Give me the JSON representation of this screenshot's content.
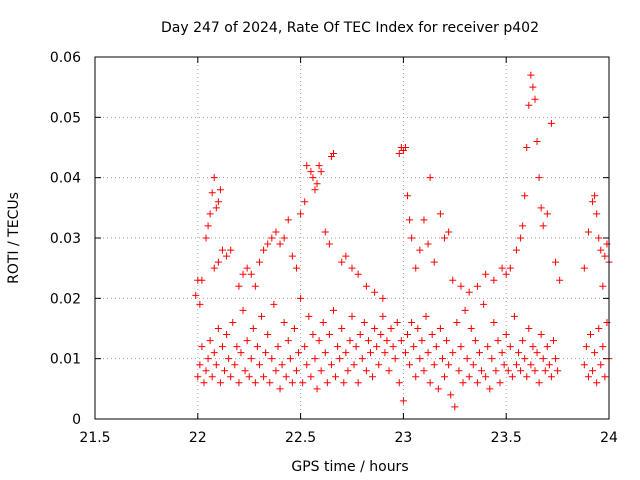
{
  "chart_data": {
    "type": "scatter",
    "title": "Day 247 of 2024, Rate Of TEC Index for receiver p402",
    "xlabel": "GPS time / hours",
    "ylabel": "ROTI / TECUs",
    "xlim": [
      21.5,
      24
    ],
    "ylim": [
      0,
      0.06
    ],
    "x_ticks": [
      21.5,
      22,
      22.5,
      23,
      23.5,
      24
    ],
    "x_tick_labels": [
      "21.5",
      "22",
      "22.5",
      "23",
      "23.5",
      "24"
    ],
    "y_ticks": [
      0,
      0.01,
      0.02,
      0.03,
      0.04,
      0.05,
      0.06
    ],
    "y_tick_labels": [
      "0",
      "0.01",
      "0.02",
      "0.03",
      "0.04",
      "0.05",
      "0.06"
    ],
    "grid": true,
    "marker": "plus",
    "series_color": "#ff0000",
    "series": [
      {
        "name": "ROTI",
        "points": [
          [
            21.99,
            0.0205
          ],
          [
            22.0,
            0.023
          ],
          [
            22.01,
            0.019
          ],
          [
            22.02,
            0.023
          ],
          [
            22.04,
            0.03
          ],
          [
            22.05,
            0.032
          ],
          [
            22.06,
            0.034
          ],
          [
            22.07,
            0.0375
          ],
          [
            22.08,
            0.04
          ],
          [
            22.09,
            0.035
          ],
          [
            22.1,
            0.036
          ],
          [
            22.11,
            0.038
          ],
          [
            22.08,
            0.025
          ],
          [
            22.1,
            0.026
          ],
          [
            22.12,
            0.028
          ],
          [
            22.14,
            0.027
          ],
          [
            22.16,
            0.028
          ],
          [
            22.2,
            0.022
          ],
          [
            22.22,
            0.024
          ],
          [
            22.24,
            0.025
          ],
          [
            22.26,
            0.024
          ],
          [
            22.28,
            0.022
          ],
          [
            22.3,
            0.026
          ],
          [
            22.32,
            0.028
          ],
          [
            22.34,
            0.029
          ],
          [
            22.36,
            0.03
          ],
          [
            22.38,
            0.031
          ],
          [
            22.4,
            0.029
          ],
          [
            22.42,
            0.03
          ],
          [
            22.44,
            0.033
          ],
          [
            22.46,
            0.027
          ],
          [
            22.48,
            0.025
          ],
          [
            22.5,
            0.034
          ],
          [
            22.52,
            0.036
          ],
          [
            22.53,
            0.042
          ],
          [
            22.55,
            0.041
          ],
          [
            22.56,
            0.04
          ],
          [
            22.57,
            0.038
          ],
          [
            22.58,
            0.039
          ],
          [
            22.59,
            0.042
          ],
          [
            22.6,
            0.041
          ],
          [
            22.62,
            0.031
          ],
          [
            22.64,
            0.029
          ],
          [
            22.65,
            0.0435
          ],
          [
            22.66,
            0.044
          ],
          [
            22.7,
            0.026
          ],
          [
            22.72,
            0.027
          ],
          [
            22.75,
            0.025
          ],
          [
            22.78,
            0.024
          ],
          [
            22.82,
            0.022
          ],
          [
            22.86,
            0.021
          ],
          [
            22.9,
            0.02
          ],
          [
            22.98,
            0.044
          ],
          [
            22.99,
            0.045
          ],
          [
            23.0,
            0.0445
          ],
          [
            23.01,
            0.045
          ],
          [
            23.02,
            0.037
          ],
          [
            23.03,
            0.033
          ],
          [
            23.04,
            0.03
          ],
          [
            23.06,
            0.025
          ],
          [
            23.08,
            0.028
          ],
          [
            23.1,
            0.033
          ],
          [
            23.12,
            0.029
          ],
          [
            23.13,
            0.04
          ],
          [
            23.15,
            0.026
          ],
          [
            23.18,
            0.034
          ],
          [
            23.2,
            0.03
          ],
          [
            23.22,
            0.031
          ],
          [
            23.24,
            0.023
          ],
          [
            23.28,
            0.022
          ],
          [
            23.32,
            0.021
          ],
          [
            23.36,
            0.022
          ],
          [
            23.4,
            0.024
          ],
          [
            23.44,
            0.023
          ],
          [
            23.48,
            0.025
          ],
          [
            23.5,
            0.024
          ],
          [
            23.52,
            0.025
          ],
          [
            23.55,
            0.028
          ],
          [
            23.57,
            0.03
          ],
          [
            23.58,
            0.032
          ],
          [
            23.59,
            0.037
          ],
          [
            23.6,
            0.045
          ],
          [
            23.61,
            0.052
          ],
          [
            23.62,
            0.057
          ],
          [
            23.63,
            0.055
          ],
          [
            23.64,
            0.053
          ],
          [
            23.65,
            0.046
          ],
          [
            23.66,
            0.04
          ],
          [
            23.67,
            0.035
          ],
          [
            23.68,
            0.032
          ],
          [
            23.7,
            0.034
          ],
          [
            23.72,
            0.049
          ],
          [
            23.74,
            0.026
          ],
          [
            23.76,
            0.023
          ],
          [
            23.88,
            0.025
          ],
          [
            23.9,
            0.031
          ],
          [
            23.92,
            0.036
          ],
          [
            23.93,
            0.037
          ],
          [
            23.94,
            0.034
          ],
          [
            23.95,
            0.03
          ],
          [
            23.96,
            0.028
          ],
          [
            23.97,
            0.022
          ],
          [
            23.98,
            0.027
          ],
          [
            23.99,
            0.029
          ],
          [
            24.0,
            0.026
          ],
          [
            22.0,
            0.007
          ],
          [
            22.01,
            0.009
          ],
          [
            22.02,
            0.012
          ],
          [
            22.03,
            0.006
          ],
          [
            22.04,
            0.008
          ],
          [
            22.05,
            0.01
          ],
          [
            22.06,
            0.013
          ],
          [
            22.07,
            0.007
          ],
          [
            22.08,
            0.011
          ],
          [
            22.09,
            0.009
          ],
          [
            22.1,
            0.015
          ],
          [
            22.11,
            0.006
          ],
          [
            22.12,
            0.012
          ],
          [
            22.13,
            0.008
          ],
          [
            22.14,
            0.014
          ],
          [
            22.15,
            0.01
          ],
          [
            22.16,
            0.007
          ],
          [
            22.17,
            0.016
          ],
          [
            22.18,
            0.009
          ],
          [
            22.19,
            0.012
          ],
          [
            22.2,
            0.006
          ],
          [
            22.21,
            0.011
          ],
          [
            22.22,
            0.018
          ],
          [
            22.23,
            0.008
          ],
          [
            22.24,
            0.013
          ],
          [
            22.25,
            0.007
          ],
          [
            22.26,
            0.01
          ],
          [
            22.27,
            0.015
          ],
          [
            22.28,
            0.006
          ],
          [
            22.29,
            0.012
          ],
          [
            22.3,
            0.009
          ],
          [
            22.31,
            0.017
          ],
          [
            22.32,
            0.007
          ],
          [
            22.33,
            0.011
          ],
          [
            22.34,
            0.014
          ],
          [
            22.35,
            0.006
          ],
          [
            22.36,
            0.01
          ],
          [
            22.37,
            0.019
          ],
          [
            22.38,
            0.008
          ],
          [
            22.39,
            0.012
          ],
          [
            22.4,
            0.005
          ],
          [
            22.41,
            0.009
          ],
          [
            22.42,
            0.016
          ],
          [
            22.43,
            0.007
          ],
          [
            22.44,
            0.013
          ],
          [
            22.45,
            0.01
          ],
          [
            22.46,
            0.006
          ],
          [
            22.47,
            0.015
          ],
          [
            22.48,
            0.008
          ],
          [
            22.49,
            0.011
          ],
          [
            22.5,
            0.02
          ],
          [
            22.51,
            0.006
          ],
          [
            22.52,
            0.012
          ],
          [
            22.53,
            0.009
          ],
          [
            22.54,
            0.017
          ],
          [
            22.55,
            0.007
          ],
          [
            22.56,
            0.014
          ],
          [
            22.57,
            0.01
          ],
          [
            22.58,
            0.005
          ],
          [
            22.59,
            0.013
          ],
          [
            22.6,
            0.008
          ],
          [
            22.61,
            0.016
          ],
          [
            22.62,
            0.011
          ],
          [
            22.63,
            0.006
          ],
          [
            22.64,
            0.014
          ],
          [
            22.65,
            0.009
          ],
          [
            22.66,
            0.018
          ],
          [
            22.67,
            0.007
          ],
          [
            22.68,
            0.012
          ],
          [
            22.69,
            0.01
          ],
          [
            22.7,
            0.015
          ],
          [
            22.71,
            0.006
          ],
          [
            22.72,
            0.011
          ],
          [
            22.73,
            0.008
          ],
          [
            22.74,
            0.013
          ],
          [
            22.75,
            0.017
          ],
          [
            22.76,
            0.009
          ],
          [
            22.77,
            0.012
          ],
          [
            22.78,
            0.006
          ],
          [
            22.79,
            0.014
          ],
          [
            22.8,
            0.01
          ],
          [
            22.81,
            0.016
          ],
          [
            22.82,
            0.008
          ],
          [
            22.83,
            0.013
          ],
          [
            22.84,
            0.011
          ],
          [
            22.85,
            0.007
          ],
          [
            22.86,
            0.015
          ],
          [
            22.87,
            0.012
          ],
          [
            22.88,
            0.009
          ],
          [
            22.89,
            0.014
          ],
          [
            22.9,
            0.017
          ],
          [
            22.91,
            0.011
          ],
          [
            22.92,
            0.013
          ],
          [
            22.93,
            0.008
          ],
          [
            22.94,
            0.015
          ],
          [
            22.95,
            0.012
          ],
          [
            22.96,
            0.01
          ],
          [
            22.97,
            0.016
          ],
          [
            22.98,
            0.006
          ],
          [
            22.99,
            0.013
          ],
          [
            23.0,
            0.003
          ],
          [
            23.01,
            0.011
          ],
          [
            23.02,
            0.014
          ],
          [
            23.03,
            0.009
          ],
          [
            23.04,
            0.016
          ],
          [
            23.05,
            0.012
          ],
          [
            23.06,
            0.007
          ],
          [
            23.07,
            0.015
          ],
          [
            23.08,
            0.01
          ],
          [
            23.09,
            0.013
          ],
          [
            23.1,
            0.008
          ],
          [
            23.11,
            0.017
          ],
          [
            23.12,
            0.011
          ],
          [
            23.13,
            0.006
          ],
          [
            23.14,
            0.014
          ],
          [
            23.15,
            0.009
          ],
          [
            23.16,
            0.012
          ],
          [
            23.17,
            0.005
          ],
          [
            23.18,
            0.015
          ],
          [
            23.19,
            0.01
          ],
          [
            23.2,
            0.007
          ],
          [
            23.21,
            0.013
          ],
          [
            23.22,
            0.009
          ],
          [
            23.23,
            0.004
          ],
          [
            23.24,
            0.011
          ],
          [
            23.25,
            0.002
          ],
          [
            23.26,
            0.016
          ],
          [
            23.27,
            0.008
          ],
          [
            23.28,
            0.012
          ],
          [
            23.29,
            0.006
          ],
          [
            23.3,
            0.018
          ],
          [
            23.31,
            0.01
          ],
          [
            23.32,
            0.007
          ],
          [
            23.33,
            0.015
          ],
          [
            23.34,
            0.009
          ],
          [
            23.35,
            0.013
          ],
          [
            23.36,
            0.006
          ],
          [
            23.37,
            0.011
          ],
          [
            23.38,
            0.008
          ],
          [
            23.39,
            0.019
          ],
          [
            23.4,
            0.007
          ],
          [
            23.41,
            0.012
          ],
          [
            23.42,
            0.005
          ],
          [
            23.43,
            0.01
          ],
          [
            23.44,
            0.016
          ],
          [
            23.45,
            0.008
          ],
          [
            23.46,
            0.013
          ],
          [
            23.47,
            0.006
          ],
          [
            23.48,
            0.011
          ],
          [
            23.49,
            0.009
          ],
          [
            23.5,
            0.014
          ],
          [
            23.51,
            0.008
          ],
          [
            23.52,
            0.012
          ],
          [
            23.53,
            0.007
          ],
          [
            23.54,
            0.017
          ],
          [
            23.55,
            0.009
          ],
          [
            23.56,
            0.011
          ],
          [
            23.57,
            0.008
          ],
          [
            23.58,
            0.013
          ],
          [
            23.59,
            0.01
          ],
          [
            23.6,
            0.007
          ],
          [
            23.61,
            0.015
          ],
          [
            23.62,
            0.009
          ],
          [
            23.63,
            0.012
          ],
          [
            23.64,
            0.008
          ],
          [
            23.65,
            0.011
          ],
          [
            23.66,
            0.006
          ],
          [
            23.67,
            0.014
          ],
          [
            23.68,
            0.01
          ],
          [
            23.69,
            0.008
          ],
          [
            23.7,
            0.012
          ],
          [
            23.71,
            0.009
          ],
          [
            23.72,
            0.007
          ],
          [
            23.73,
            0.013
          ],
          [
            23.74,
            0.01
          ],
          [
            23.75,
            0.008
          ],
          [
            23.88,
            0.009
          ],
          [
            23.89,
            0.012
          ],
          [
            23.9,
            0.007
          ],
          [
            23.91,
            0.014
          ],
          [
            23.92,
            0.008
          ],
          [
            23.93,
            0.011
          ],
          [
            23.94,
            0.006
          ],
          [
            23.95,
            0.015
          ],
          [
            23.96,
            0.009
          ],
          [
            23.97,
            0.012
          ],
          [
            23.98,
            0.007
          ],
          [
            23.99,
            0.016
          ],
          [
            24.0,
            0.01
          ]
        ]
      }
    ]
  }
}
